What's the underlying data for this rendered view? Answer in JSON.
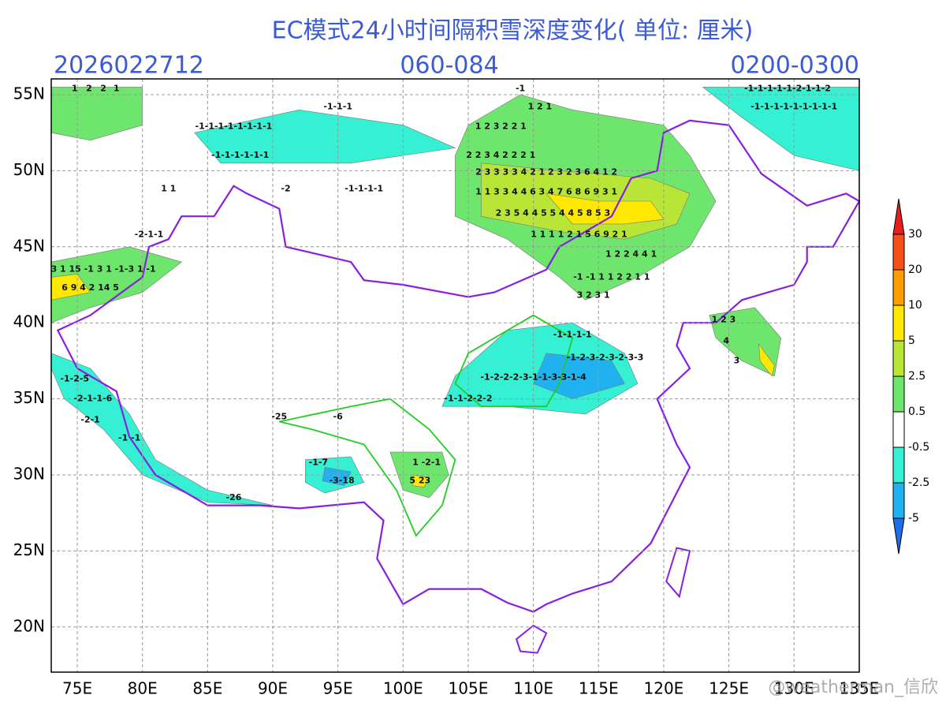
{
  "header": {
    "title": "EC模式24小时间隔积雪深度变化( 单位: 厘米)",
    "init_time": "2026022712",
    "forecast_hours": "060-084",
    "valid_time": "0200-0300"
  },
  "map": {
    "lon_ticks": [
      {
        "value": 75,
        "label": "75E"
      },
      {
        "value": 80,
        "label": "80E"
      },
      {
        "value": 85,
        "label": "85E"
      },
      {
        "value": 90,
        "label": "90E"
      },
      {
        "value": 95,
        "label": "95E"
      },
      {
        "value": 100,
        "label": "100E"
      },
      {
        "value": 105,
        "label": "105E"
      },
      {
        "value": 110,
        "label": "110E"
      },
      {
        "value": 115,
        "label": "115E"
      },
      {
        "value": 120,
        "label": "120E"
      },
      {
        "value": 125,
        "label": "125E"
      },
      {
        "value": 130,
        "label": "130E"
      },
      {
        "value": 135,
        "label": "135E"
      }
    ],
    "lat_ticks": [
      {
        "value": 55,
        "label": "55N"
      },
      {
        "value": 50,
        "label": "50N"
      },
      {
        "value": 45,
        "label": "45N"
      },
      {
        "value": 40,
        "label": "40N"
      },
      {
        "value": 35,
        "label": "35N"
      },
      {
        "value": 30,
        "label": "30N"
      },
      {
        "value": 25,
        "label": "25N"
      },
      {
        "value": 20,
        "label": "20N"
      }
    ],
    "labels": [
      "1",
      "2",
      "2",
      "1",
      "-1",
      "-1-1-1-1-1-2-1-1-2",
      "-1-1-1-1-1-1-1-1-1",
      "1 2 1",
      "-1-1-1-1-1-1-1-1",
      "-1-1-1-1-1-1",
      "1 2 3 2 2 1",
      "2 2 3 4 2 2 2 1",
      "2 3 3 3 3 4 2 1 2 3 2 3 6 4 1 2",
      "1 1 3 3 4 4 6 3 4 7 6 8 6 9 3 1",
      "2 3 5 4 4 5 5 4 4 5 8 5 3",
      "1 1 1 1 2 1 5 6 9 2 1",
      "1 2 2 4 4 1",
      "-1 -1 1 1 2 2 1 1",
      "3 2 3 1",
      "-1-1-1-1",
      "-1-2-3-2-3-2-3-3",
      "-1-2-2-2-3-1-1-3-3-1-4",
      "-1-1-2-2-2",
      "1 2 3",
      "4",
      "3",
      "3 1 15 -1 3 1 -1-3 1 -1",
      "6 9 4 2 14 5",
      "-2-1-1",
      "-1-2-5",
      "-2-1-1-6",
      "-2-1",
      "-1 -1",
      "-1-7",
      "-3-18",
      "1 -2-1",
      "5 23",
      "-25",
      "-6",
      "-26",
      "-2",
      "-1-1-1-1",
      "1 1",
      "-1-1-1"
    ]
  },
  "colorbar": {
    "levels": [
      30,
      20,
      10,
      5,
      2.5,
      0.5,
      -0.5,
      -2.5,
      -5
    ],
    "colors": [
      "#e81e1e",
      "#f5501a",
      "#ff9c00",
      "#ffe800",
      "#b9e636",
      "#6ee66e",
      "#ffffff",
      "#36f0d4",
      "#20b2f0",
      "#1f6fe8"
    ]
  },
  "watermark": "@weatherman_信欣"
}
